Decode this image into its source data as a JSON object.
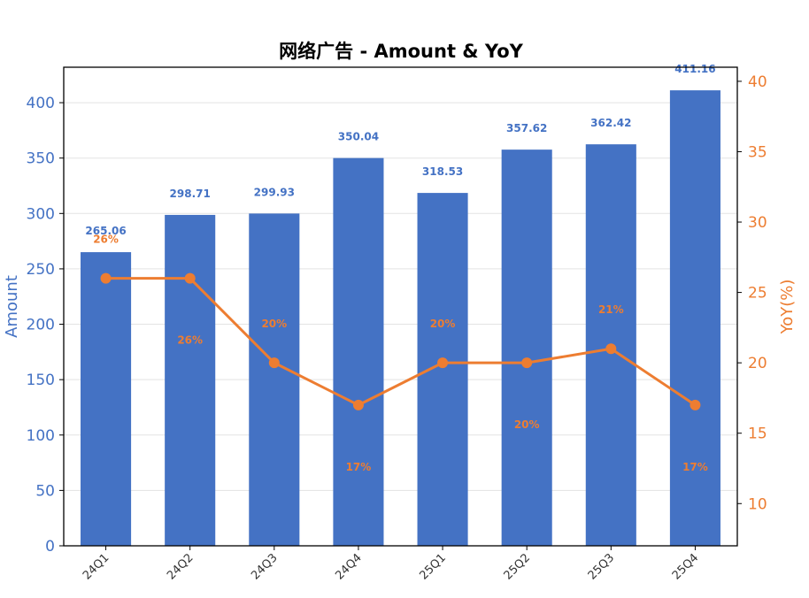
{
  "chart_data": {
    "type": "bar",
    "title": "网络广告 - Amount & YoY",
    "categories": [
      "24Q1",
      "24Q2",
      "24Q3",
      "24Q4",
      "25Q1",
      "25Q2",
      "25Q3",
      "25Q4"
    ],
    "series": [
      {
        "type": "bar",
        "axis": "left",
        "values": [
          265.06,
          298.71,
          299.93,
          350.04,
          318.53,
          357.62,
          362.42,
          411.16
        ],
        "labels": [
          "265.06",
          "298.71",
          "299.93",
          "350.04",
          "318.53",
          "357.62",
          "362.42",
          "411.16"
        ],
        "color": "#4472C4"
      },
      {
        "type": "line",
        "axis": "right",
        "values": [
          26,
          26,
          20,
          17,
          20,
          20,
          21,
          17
        ],
        "labels": [
          "26%",
          "26%",
          "20%",
          "17%",
          "20%",
          "20%",
          "21%",
          "17%"
        ],
        "color": "#ED7D31"
      }
    ],
    "ylabel_left": "Amount",
    "ylabel_right": "YoY(%)",
    "ylim_left": [
      0,
      432
    ],
    "ylim_right": [
      7,
      41
    ],
    "yticks_left": [
      "0",
      "50",
      "100",
      "150",
      "200",
      "250",
      "300",
      "350",
      "400"
    ],
    "yticks_right": [
      "10",
      "15",
      "20",
      "25",
      "30",
      "35",
      "40"
    ],
    "grid": "horizontal",
    "legend": "none"
  }
}
